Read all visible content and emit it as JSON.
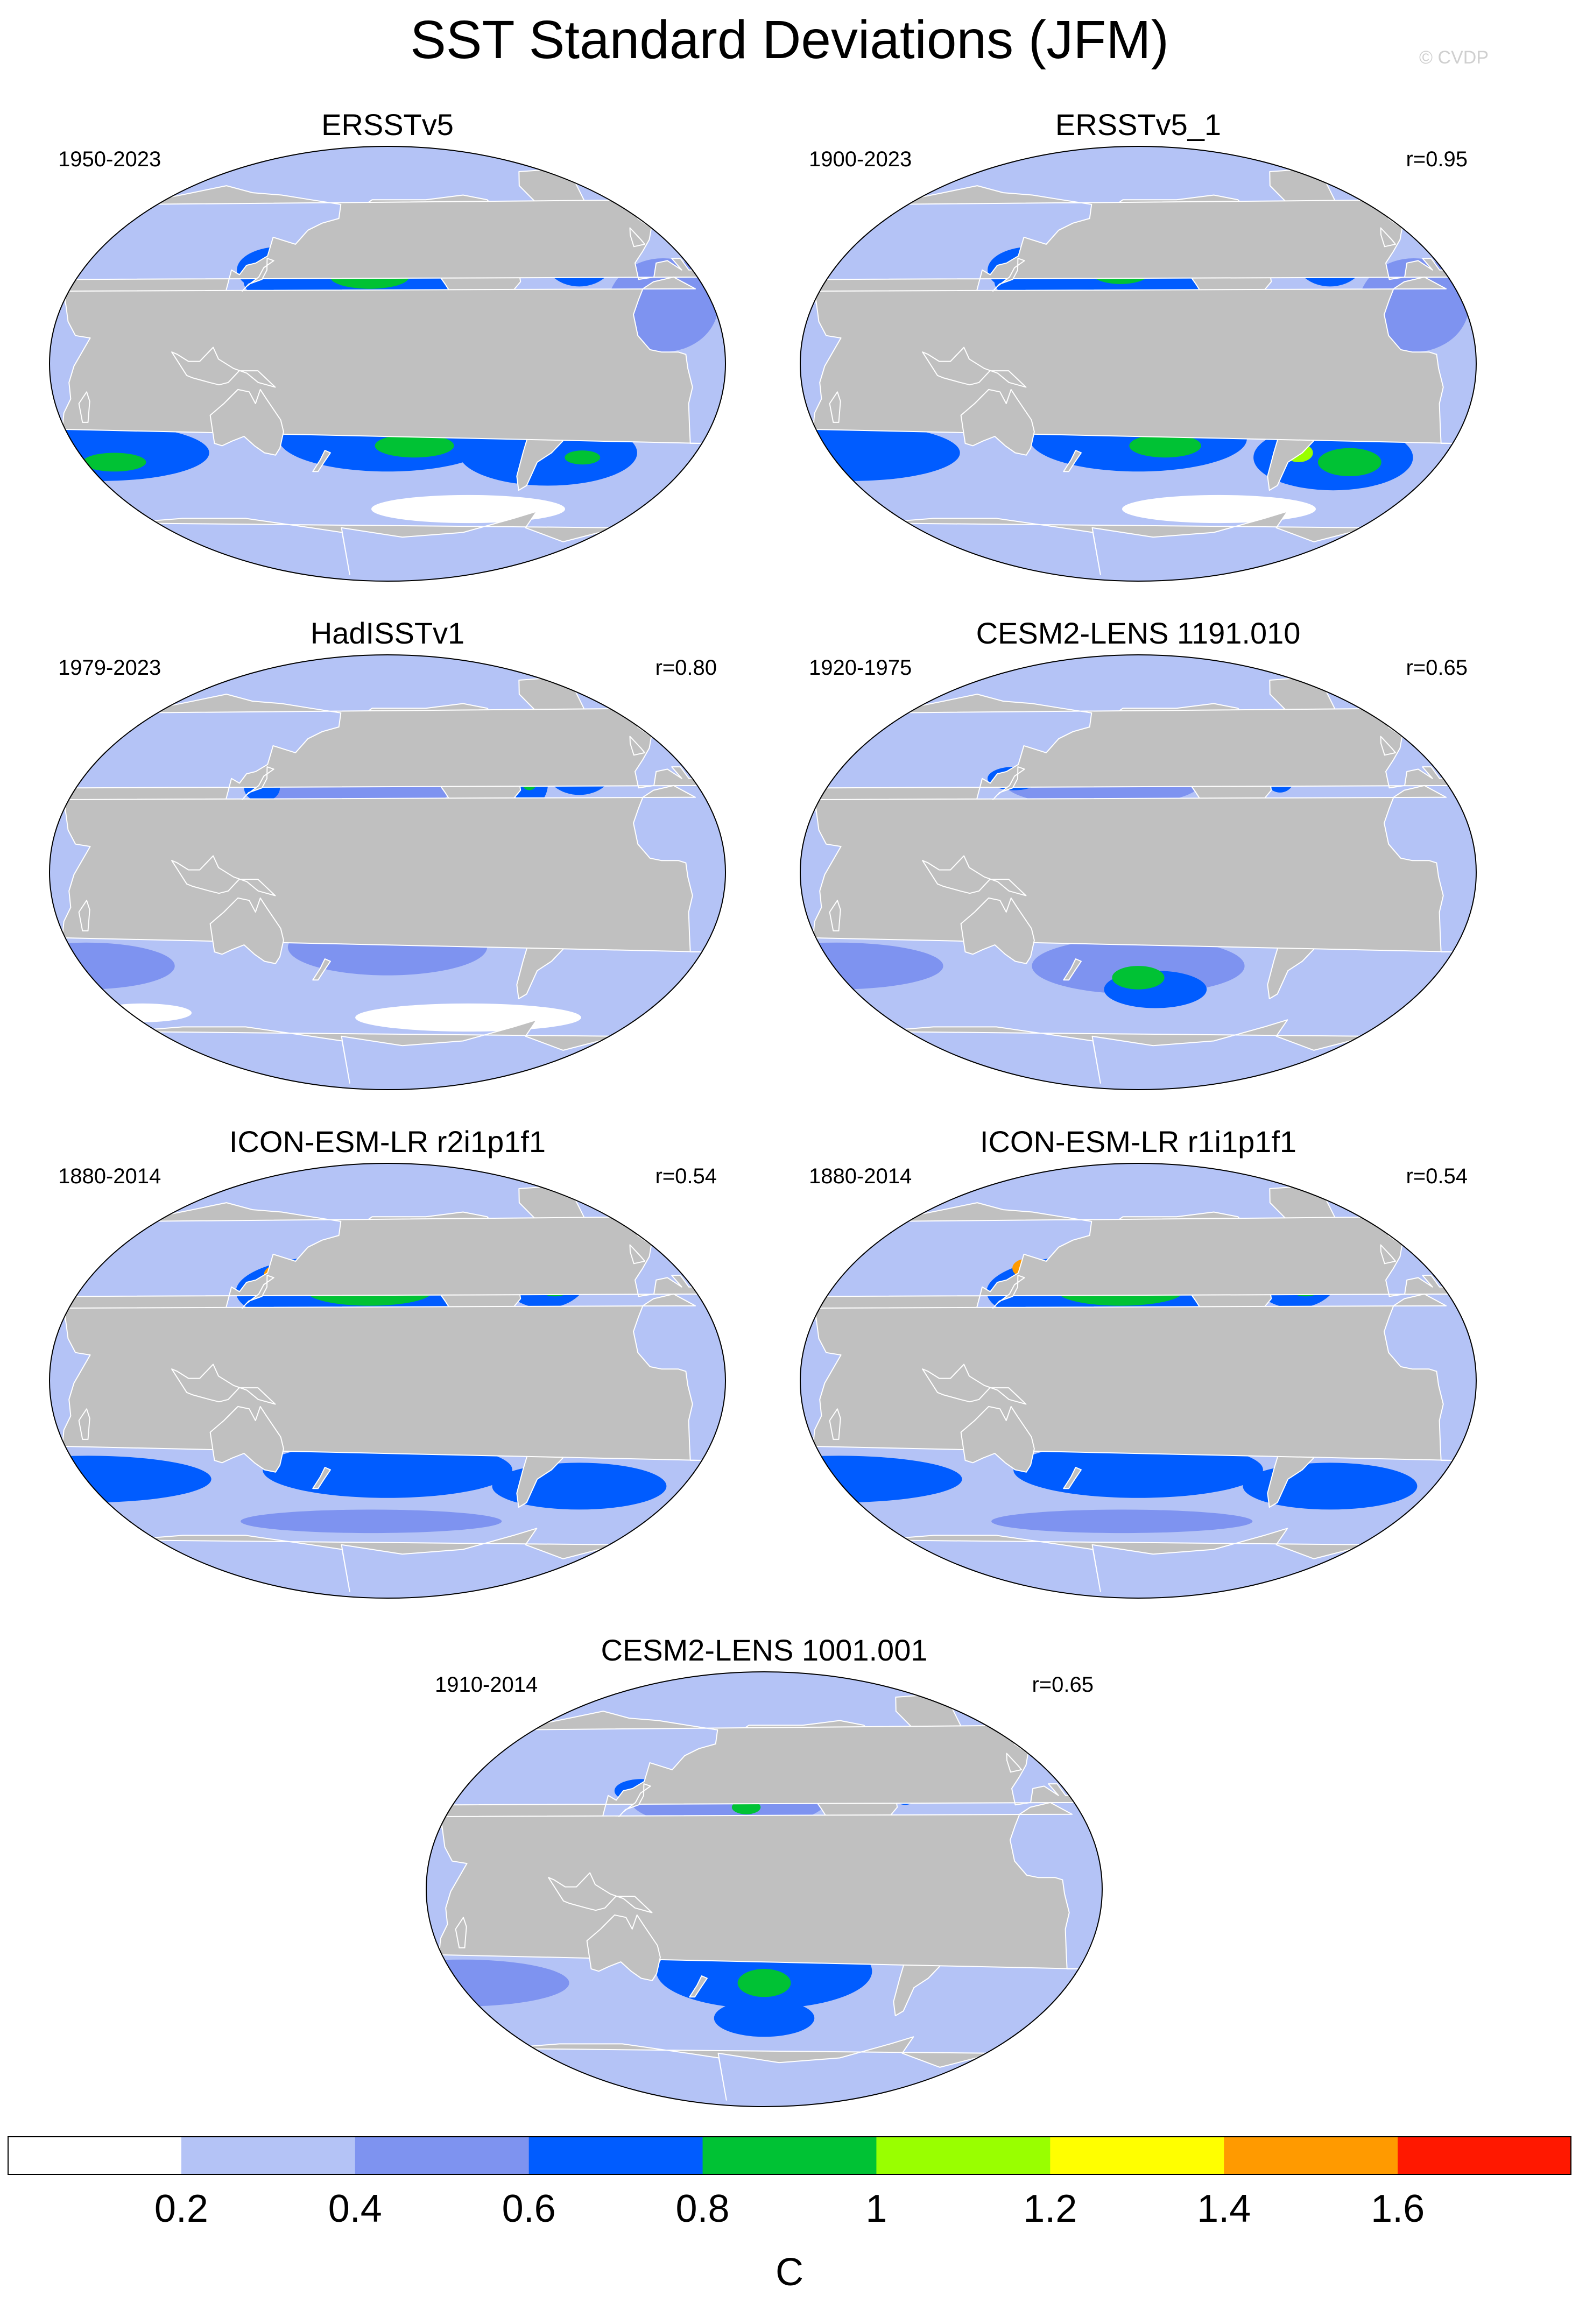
{
  "figure": {
    "title": "SST Standard Deviations (JFM)",
    "credit": "© CVDP"
  },
  "panels": [
    {
      "title": "ERSSTv5",
      "period": "1950-2023",
      "r": ""
    },
    {
      "title": "ERSSTv5_1",
      "period": "1900-2023",
      "r": "r=0.95"
    },
    {
      "title": "HadISSTv1",
      "period": "1979-2023",
      "r": "r=0.80"
    },
    {
      "title": "CESM2-LENS 1191.010",
      "period": "1920-1975",
      "r": "r=0.65"
    },
    {
      "title": "ICON-ESM-LR r2i1p1f1",
      "period": "1880-2014",
      "r": "r=0.54"
    },
    {
      "title": "ICON-ESM-LR r1i1p1f1",
      "period": "1880-2014",
      "r": "r=0.54"
    },
    {
      "title": "CESM2-LENS 1001.001",
      "period": "1910-2014",
      "r": "r=0.65"
    }
  ],
  "colorbar": {
    "unit": "C",
    "tick_labels": [
      "0.2",
      "0.4",
      "0.6",
      "0.8",
      "1",
      "1.2",
      "1.4",
      "1.6"
    ],
    "colors": [
      "#ffffff",
      "#b4c3f6",
      "#7e93f0",
      "#005cff",
      "#00c234",
      "#99ff00",
      "#ffff00",
      "#ff9a00",
      "#ff1800"
    ]
  },
  "map_colors": {
    "land": "#c0c0c0",
    "ocean_base": "#b4c3f6"
  }
}
